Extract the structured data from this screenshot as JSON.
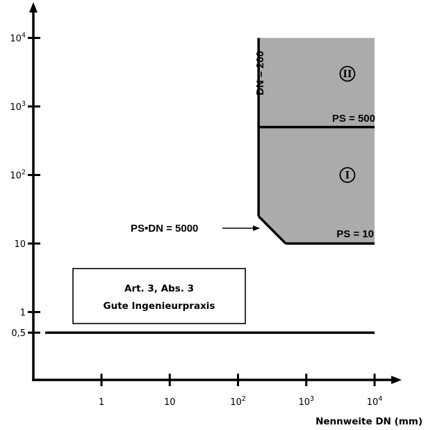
{
  "chart_data": {
    "type": "area",
    "x_axis": {
      "title": "Nennweite DN (mm)",
      "scale": "log",
      "range": [
        0.2,
        10000
      ],
      "ticks": [
        {
          "value": 1,
          "label": "1"
        },
        {
          "value": 10,
          "label": "10"
        },
        {
          "value": 100,
          "label": "10",
          "sup": "2"
        },
        {
          "value": 1000,
          "label": "10",
          "sup": "3"
        },
        {
          "value": 10000,
          "label": "10",
          "sup": "4"
        }
      ]
    },
    "y_axis": {
      "title": "",
      "scale": "log",
      "range": [
        0.1,
        10000
      ],
      "ticks": [
        {
          "value": 0.5,
          "label": "0,5"
        },
        {
          "value": 1,
          "label": "1"
        },
        {
          "value": 10,
          "label": "10"
        },
        {
          "value": 100,
          "label": "10",
          "sup": "2"
        },
        {
          "value": 1000,
          "label": "10",
          "sup": "3"
        },
        {
          "value": 10000,
          "label": "10",
          "sup": "4"
        }
      ]
    },
    "regions": [
      {
        "name": "I",
        "label": "I",
        "polygon": [
          [
            200,
            25
          ],
          [
            200,
            500
          ],
          [
            10000,
            500
          ],
          [
            10000,
            10
          ],
          [
            500,
            10
          ]
        ],
        "fill": "#ababab",
        "label_at": [
          4000,
          100
        ]
      },
      {
        "name": "II",
        "label": "II",
        "polygon": [
          [
            200,
            500
          ],
          [
            200,
            10000
          ],
          [
            10000,
            10000
          ],
          [
            10000,
            500
          ]
        ],
        "fill": "#ababab",
        "label_at": [
          4000,
          3000
        ]
      }
    ],
    "lines": [
      {
        "name": "DN = 200",
        "label": "DN = 200",
        "points": [
          [
            200,
            25
          ],
          [
            200,
            10000
          ]
        ]
      },
      {
        "name": "PS = 500",
        "label": "PS = 500",
        "points": [
          [
            200,
            500
          ],
          [
            10000,
            500
          ]
        ]
      },
      {
        "name": "PS = 10",
        "label": "PS = 10",
        "points": [
          [
            500,
            10
          ],
          [
            10000,
            10
          ]
        ]
      },
      {
        "name": "PS•DN = 5000",
        "label": "PS•DN = 5000",
        "points": [
          [
            200,
            25
          ],
          [
            500,
            10
          ]
        ]
      },
      {
        "name": "PS = 0,5",
        "points": [
          [
            0.15,
            0.5
          ],
          [
            10000,
            0.5
          ]
        ]
      }
    ],
    "annotations": {
      "ps_dn_arrow": "PS•DN = 5000",
      "box_line1": "Art. 3, Abs. 3",
      "box_line2": "Gute Ingenieurpraxis"
    },
    "colors": {
      "region_fill": "#ababab",
      "line": "#000000"
    }
  }
}
